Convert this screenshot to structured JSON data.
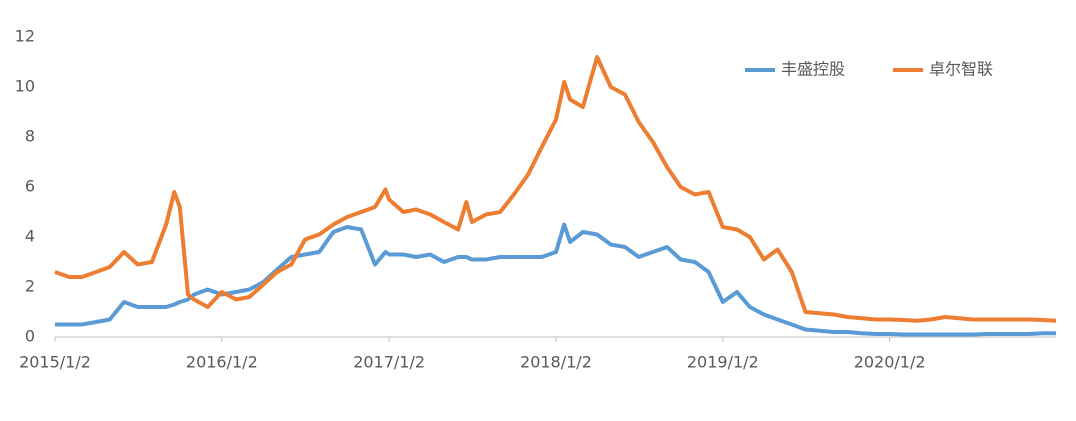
{
  "chart_data": {
    "type": "line",
    "x": [
      "2015/1/2",
      "2015/2/2",
      "2015/3/2",
      "2015/4/2",
      "2015/5/2",
      "2015/6/2",
      "2015/7/2",
      "2015/8/2",
      "2015/9/2",
      "2015/9/20",
      "2015/10/2",
      "2015/10/20",
      "2015/11/2",
      "2015/12/2",
      "2016/1/2",
      "2016/2/2",
      "2016/3/2",
      "2016/4/2",
      "2016/5/2",
      "2016/6/2",
      "2016/7/2",
      "2016/8/2",
      "2016/9/2",
      "2016/10/2",
      "2016/11/2",
      "2016/12/2",
      "2016/12/25",
      "2017/1/2",
      "2017/2/2",
      "2017/3/2",
      "2017/4/2",
      "2017/5/2",
      "2017/6/2",
      "2017/6/20",
      "2017/7/2",
      "2017/8/2",
      "2017/9/2",
      "2017/10/2",
      "2017/11/2",
      "2017/12/2",
      "2018/1/2",
      "2018/1/20",
      "2018/2/2",
      "2018/3/2",
      "2018/4/2",
      "2018/5/2",
      "2018/6/2",
      "2018/7/2",
      "2018/8/2",
      "2018/9/2",
      "2018/10/2",
      "2018/11/2",
      "2018/12/2",
      "2019/1/2",
      "2019/2/2",
      "2019/3/2",
      "2019/4/2",
      "2019/5/2",
      "2019/6/2",
      "2019/7/2",
      "2019/8/2",
      "2019/9/2",
      "2019/10/2",
      "2019/11/2",
      "2019/12/2",
      "2020/1/2",
      "2020/2/2",
      "2020/3/2",
      "2020/4/2",
      "2020/5/2",
      "2020/6/2",
      "2020/7/2",
      "2020/8/2",
      "2020/9/2",
      "2020/10/2",
      "2020/11/2",
      "2020/12/2",
      "2020/12/31"
    ],
    "series": [
      {
        "name": "丰盛控股",
        "color": "#5b9bd5",
        "values": [
          0.5,
          0.5,
          0.5,
          0.6,
          0.7,
          1.4,
          1.2,
          1.2,
          1.2,
          1.3,
          1.4,
          1.5,
          1.7,
          1.9,
          1.7,
          1.8,
          1.9,
          2.2,
          2.7,
          3.2,
          3.3,
          3.4,
          4.2,
          4.4,
          4.3,
          2.9,
          3.4,
          3.3,
          3.3,
          3.2,
          3.3,
          3.0,
          3.2,
          3.2,
          3.1,
          3.1,
          3.2,
          3.2,
          3.2,
          3.2,
          3.4,
          4.5,
          3.8,
          4.2,
          4.1,
          3.7,
          3.6,
          3.2,
          3.4,
          3.6,
          3.1,
          3.0,
          2.6,
          1.4,
          1.8,
          1.2,
          0.9,
          0.7,
          0.5,
          0.3,
          0.25,
          0.2,
          0.2,
          0.15,
          0.12,
          0.12,
          0.1,
          0.1,
          0.1,
          0.1,
          0.1,
          0.1,
          0.12,
          0.12,
          0.12,
          0.12,
          0.15,
          0.15
        ]
      },
      {
        "name": "卓尔智联",
        "color": "#ed7d31",
        "values": [
          2.6,
          2.4,
          2.4,
          2.6,
          2.8,
          3.4,
          2.9,
          3.0,
          4.5,
          5.8,
          5.2,
          1.7,
          1.5,
          1.2,
          1.8,
          1.5,
          1.6,
          2.1,
          2.6,
          2.9,
          3.9,
          4.1,
          4.5,
          4.8,
          5.0,
          5.2,
          5.9,
          5.5,
          5.0,
          5.1,
          4.9,
          4.6,
          4.3,
          5.4,
          4.6,
          4.9,
          5.0,
          5.7,
          6.5,
          7.6,
          8.7,
          10.2,
          9.5,
          9.2,
          11.2,
          10.0,
          9.7,
          8.6,
          7.8,
          6.8,
          6.0,
          5.7,
          5.8,
          4.4,
          4.3,
          4.0,
          3.1,
          3.5,
          2.6,
          1.0,
          0.95,
          0.9,
          0.8,
          0.75,
          0.7,
          0.7,
          0.68,
          0.65,
          0.7,
          0.8,
          0.75,
          0.7,
          0.7,
          0.7,
          0.7,
          0.7,
          0.68,
          0.65
        ]
      }
    ],
    "xlim": [
      "2015/1/2",
      "2020/12/31"
    ],
    "xticks": [
      "2015/1/2",
      "2016/1/2",
      "2017/1/2",
      "2018/1/2",
      "2019/1/2",
      "2020/1/2"
    ],
    "ylim": [
      0,
      12
    ],
    "yticks": [
      0,
      2,
      4,
      6,
      8,
      10,
      12
    ],
    "grid": false,
    "legend": "upper right"
  }
}
